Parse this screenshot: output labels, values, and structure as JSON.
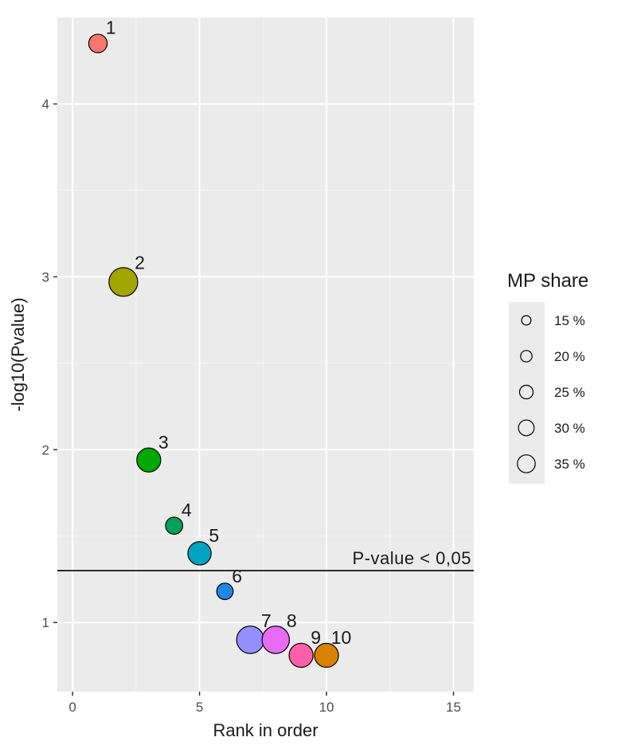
{
  "chart_data": {
    "type": "scatter",
    "xlabel": "Rank in order",
    "ylabel": "-log10(Pvalue)",
    "xlim": [
      -0.6,
      15.8
    ],
    "ylim": [
      0.6,
      4.5
    ],
    "x_ticks": [
      0,
      5,
      10,
      15
    ],
    "y_ticks": [
      1,
      2,
      3,
      4
    ],
    "grid": true,
    "points": [
      {
        "label": "1",
        "x": 1,
        "y": 4.35,
        "size": 20,
        "color": "#F8766D"
      },
      {
        "label": "2",
        "x": 2,
        "y": 2.97,
        "size": 35,
        "color": "#A3A500"
      },
      {
        "label": "3",
        "x": 3,
        "y": 1.94,
        "size": 28,
        "color": "#00A800"
      },
      {
        "label": "4",
        "x": 4,
        "y": 1.56,
        "size": 18,
        "color": "#00A25A"
      },
      {
        "label": "5",
        "x": 5,
        "y": 1.4,
        "size": 27,
        "color": "#00A3C0"
      },
      {
        "label": "6",
        "x": 6,
        "y": 1.18,
        "size": 17,
        "color": "#1E88E5"
      },
      {
        "label": "7",
        "x": 7,
        "y": 0.9,
        "size": 33,
        "color": "#9590FF"
      },
      {
        "label": "8",
        "x": 8,
        "y": 0.9,
        "size": 33,
        "color": "#E76BF3"
      },
      {
        "label": "9",
        "x": 9,
        "y": 0.81,
        "size": 28,
        "color": "#FF5FA8"
      },
      {
        "label": "10",
        "x": 10,
        "y": 0.81,
        "size": 28,
        "color": "#D98200"
      }
    ],
    "reference_line": {
      "y": 1.3,
      "label": "P-value < 0,05"
    },
    "legend": {
      "title": "MP share",
      "placement": "right",
      "entries": [
        {
          "label": "15 %",
          "size": 15
        },
        {
          "label": "20 %",
          "size": 20
        },
        {
          "label": "25 %",
          "size": 25
        },
        {
          "label": "30 %",
          "size": 30
        },
        {
          "label": "35 %",
          "size": 35
        }
      ]
    }
  }
}
